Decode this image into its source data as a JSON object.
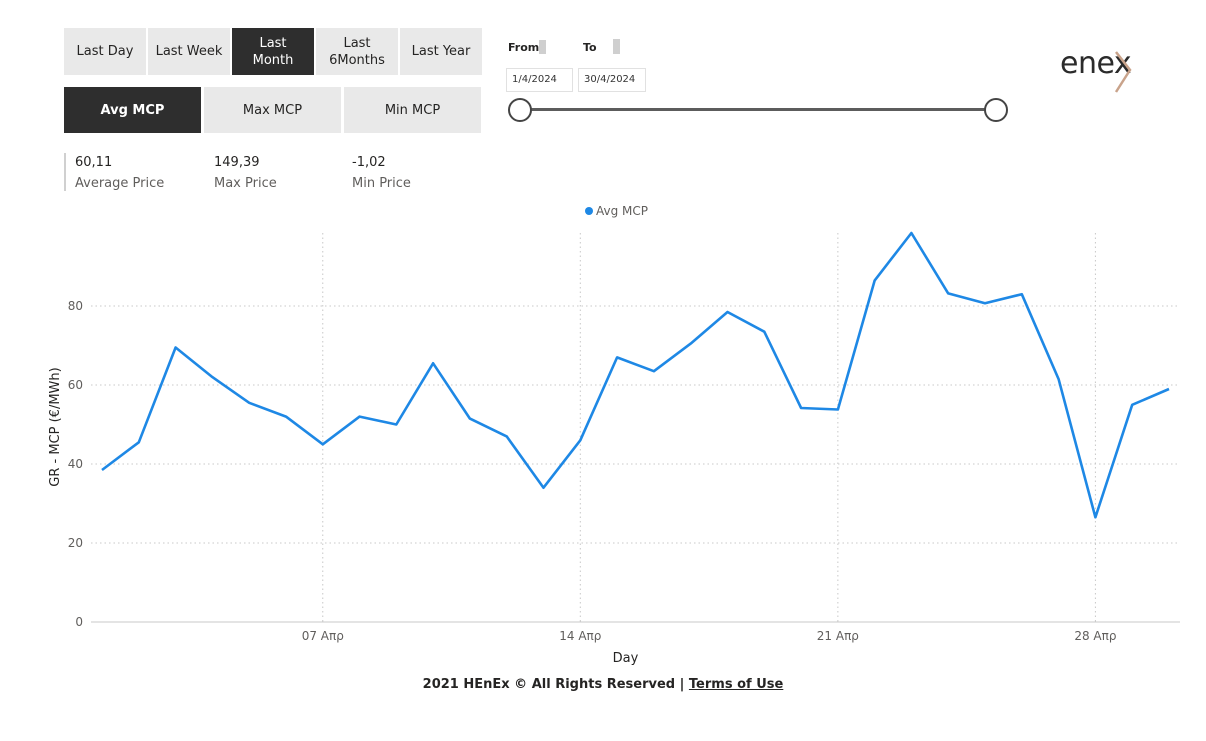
{
  "period_buttons": [
    {
      "label": "Last Day",
      "active": false
    },
    {
      "label": "Last Week",
      "active": false
    },
    {
      "label": "Last Month",
      "active": true
    },
    {
      "label": "Last 6Months",
      "active": false
    },
    {
      "label": "Last Year",
      "active": false
    }
  ],
  "metric_buttons": [
    {
      "label": "Avg MCP",
      "active": true
    },
    {
      "label": "Max MCP",
      "active": false
    },
    {
      "label": "Min MCP",
      "active": false
    }
  ],
  "date_range": {
    "from_label": "From",
    "to_label": "To",
    "from_value": "1/4/2024",
    "to_value": "30/4/2024"
  },
  "kpis": [
    {
      "value": "60,11",
      "label": "Average Price"
    },
    {
      "value": "149,39",
      "label": "Max Price"
    },
    {
      "value": "-1,02",
      "label": "Min Price"
    }
  ],
  "logo": {
    "text": "enex"
  },
  "colors": {
    "series": "#1e88e5",
    "accent_dark": "#2e2e2e",
    "button_bg": "#e9e9e9",
    "logo_chevron": "#c9a38b"
  },
  "chart_data": {
    "type": "line",
    "legend": "Avg MCP",
    "legend_position": "top-center",
    "xlabel": "Day",
    "ylabel": "GR - MCP (€/MWh)",
    "x": [
      1,
      2,
      3,
      4,
      5,
      6,
      7,
      8,
      9,
      10,
      11,
      12,
      13,
      14,
      15,
      16,
      17,
      18,
      19,
      20,
      21,
      22,
      23,
      24,
      25,
      26,
      27,
      28,
      29,
      30
    ],
    "series": [
      {
        "name": "Avg MCP",
        "values": [
          38.5,
          45.5,
          69.5,
          62,
          55.5,
          52,
          45,
          52,
          50,
          65.5,
          51.5,
          47,
          34,
          46,
          67,
          63.5,
          70.5,
          78.5,
          73.5,
          54.2,
          53.8,
          86.5,
          98.5,
          83.2,
          80.7,
          83,
          61.5,
          26.5,
          55,
          59
        ]
      }
    ],
    "x_ticks": [
      {
        "day": 7,
        "label": "07 Απρ"
      },
      {
        "day": 14,
        "label": "14 Απρ"
      },
      {
        "day": 21,
        "label": "21 Απρ"
      },
      {
        "day": 28,
        "label": "28 Απρ"
      }
    ],
    "y_ticks": [
      0,
      20,
      40,
      60,
      80
    ],
    "ylim": [
      0,
      98.5
    ],
    "xlim": [
      1,
      30
    ],
    "grid": true
  },
  "footer": {
    "text": "2021 HEnEx © All Rights Reserved | ",
    "link": "Terms of Use"
  }
}
